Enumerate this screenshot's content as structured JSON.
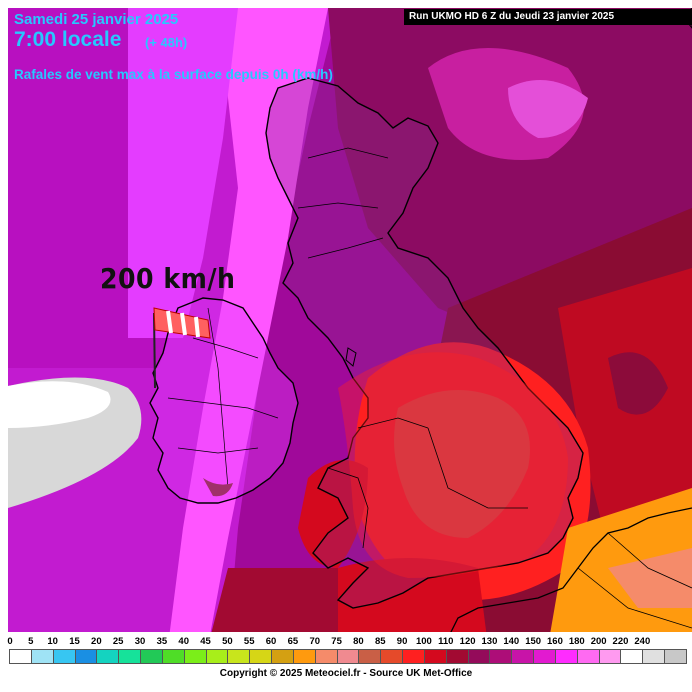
{
  "header": {
    "date": "Samedi 25 janvier 2025",
    "local_time": "7:00 locale",
    "lead_time": "(+ 48h)",
    "parameter": "Rafales de vent max à la surface depuis 0h (km/h)",
    "run_info": "Run UKMO HD 6 Z du Jeudi 23 janvier 2025"
  },
  "callout": {
    "value_label": "200 km/h",
    "icon": "windsock-icon"
  },
  "legend": {
    "ticks": [
      "0",
      "5",
      "10",
      "15",
      "20",
      "25",
      "30",
      "35",
      "40",
      "45",
      "50",
      "55",
      "60",
      "65",
      "70",
      "75",
      "80",
      "85",
      "90",
      "100",
      "110",
      "120",
      "130",
      "140",
      "150",
      "160",
      "180",
      "200",
      "220",
      "240"
    ],
    "colors": [
      "#ffffff",
      "#9fe3f5",
      "#37c6f2",
      "#1a8fe3",
      "#14d3c0",
      "#16e29a",
      "#22c957",
      "#4fdd27",
      "#7bee19",
      "#a8ee1a",
      "#c8e51c",
      "#d6d616",
      "#d4a012",
      "#ff9a0e",
      "#f58b6a",
      "#f08a90",
      "#c95f46",
      "#e54a2a",
      "#ff2020",
      "#d4091e",
      "#a20a32",
      "#940b5a",
      "#ad0d78",
      "#c814a8",
      "#e21ad0",
      "#ff2cff",
      "#ff6af2",
      "#ff9af0",
      "#ffffff",
      "#e0e0e0",
      "#c8c8c8"
    ]
  },
  "map_colors": {
    "sea_far": "#b810c0",
    "magenta": "#e43cff",
    "violet": "#ff55ff",
    "purple_dark": "#8c0b62",
    "maroon": "#8a0c33",
    "red_dark": "#bf0a22",
    "red": "#ff2020",
    "coral": "#e0553a",
    "orange": "#ff9a0e",
    "white_max": "#ffffff",
    "grey_max": "#d8d8d8"
  },
  "footer": {
    "copyright": "Copyright © 2025 Meteociel.fr - Source UK Met-Office"
  }
}
